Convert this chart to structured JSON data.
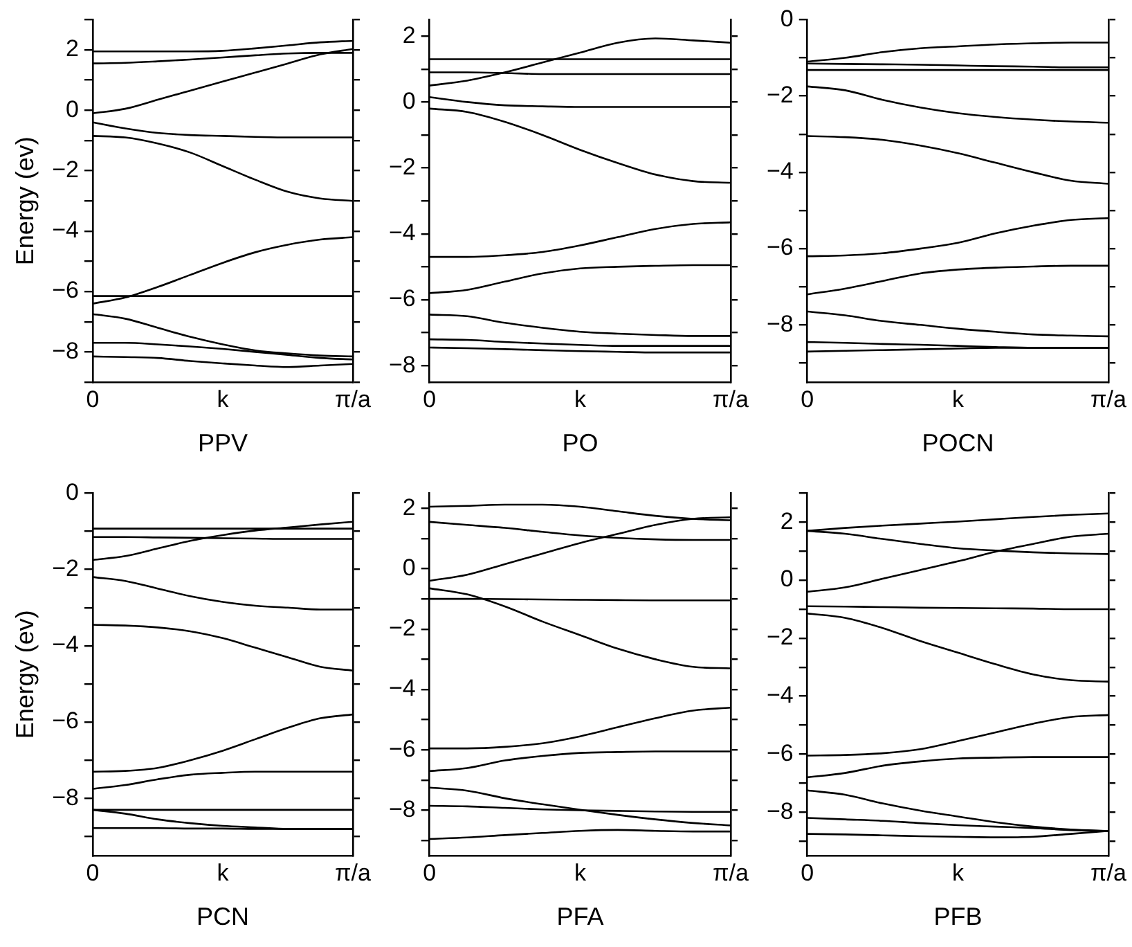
{
  "chart_data": [
    {
      "type": "line",
      "xlabel": "PPV",
      "ylabel": "Energy (ev)",
      "marker": "none",
      "line_style": "solid",
      "categories": [
        "0",
        null,
        null,
        null,
        "k",
        null,
        null,
        null,
        "π/a"
      ],
      "ylim": [
        -9,
        3
      ],
      "yticks": [
        {
          "value": -9,
          "label": null
        },
        -8,
        {
          "value": -7,
          "label": null
        },
        -6,
        {
          "value": -5,
          "label": null
        },
        -4,
        {
          "value": -3,
          "label": null
        },
        -2,
        {
          "value": -1,
          "label": null
        },
        0,
        {
          "value": 1,
          "label": null
        },
        2,
        {
          "value": 3,
          "label": null
        }
      ],
      "series": [
        {
          "color": "#000000",
          "values": [
            1.95,
            1.95,
            1.95,
            1.95,
            1.97,
            2.05,
            2.15,
            2.25,
            2.3
          ]
        },
        {
          "color": "#000000",
          "values": [
            1.55,
            1.57,
            1.62,
            1.68,
            1.75,
            1.82,
            1.88,
            1.9,
            1.9
          ]
        },
        {
          "color": "#000000",
          "values": [
            -0.1,
            0.05,
            0.35,
            0.65,
            0.95,
            1.25,
            1.55,
            1.85,
            2.03
          ]
        },
        {
          "color": "#000000",
          "values": [
            -0.4,
            -0.6,
            -0.75,
            -0.82,
            -0.85,
            -0.88,
            -0.9,
            -0.9,
            -0.9
          ]
        },
        {
          "color": "#000000",
          "values": [
            -0.85,
            -0.9,
            -1.1,
            -1.4,
            -1.85,
            -2.3,
            -2.7,
            -2.92,
            -3.0
          ]
        },
        {
          "color": "#000000",
          "values": [
            -6.4,
            -6.2,
            -5.85,
            -5.45,
            -5.05,
            -4.7,
            -4.45,
            -4.28,
            -4.2
          ]
        },
        {
          "color": "#000000",
          "values": [
            -6.15,
            -6.15,
            -6.15,
            -6.15,
            -6.15,
            -6.15,
            -6.15,
            -6.15,
            -6.15
          ]
        },
        {
          "color": "#000000",
          "values": [
            -6.75,
            -6.9,
            -7.2,
            -7.5,
            -7.75,
            -7.95,
            -8.05,
            -8.12,
            -8.15
          ]
        },
        {
          "color": "#000000",
          "values": [
            -7.7,
            -7.7,
            -7.75,
            -7.82,
            -7.9,
            -8.0,
            -8.1,
            -8.2,
            -8.25
          ]
        },
        {
          "color": "#000000",
          "values": [
            -8.15,
            -8.17,
            -8.2,
            -8.3,
            -8.38,
            -8.45,
            -8.5,
            -8.45,
            -8.4
          ]
        }
      ]
    },
    {
      "type": "line",
      "xlabel": "PO",
      "marker": "none",
      "line_style": "solid",
      "categories": [
        "0",
        null,
        null,
        null,
        "k",
        null,
        null,
        null,
        "π/a"
      ],
      "ylim": [
        -8.5,
        2.5
      ],
      "yticks": [
        -8,
        {
          "value": -7,
          "label": null
        },
        -6,
        {
          "value": -5,
          "label": null
        },
        -4,
        {
          "value": -3,
          "label": null
        },
        -2,
        {
          "value": -1,
          "label": null
        },
        0,
        {
          "value": 1,
          "label": null
        },
        2
      ],
      "series": [
        {
          "color": "#000000",
          "values": [
            0.5,
            0.65,
            0.9,
            1.2,
            1.5,
            1.8,
            1.93,
            1.87,
            1.8
          ]
        },
        {
          "color": "#000000",
          "values": [
            1.3,
            1.3,
            1.3,
            1.3,
            1.3,
            1.3,
            1.3,
            1.3,
            1.3
          ]
        },
        {
          "color": "#000000",
          "values": [
            0.9,
            0.9,
            0.88,
            0.85,
            0.85,
            0.85,
            0.85,
            0.85,
            0.85
          ]
        },
        {
          "color": "#000000",
          "values": [
            0.15,
            0.0,
            -0.1,
            -0.13,
            -0.15,
            -0.15,
            -0.15,
            -0.15,
            -0.15
          ]
        },
        {
          "color": "#000000",
          "values": [
            -0.2,
            -0.3,
            -0.6,
            -1.0,
            -1.45,
            -1.85,
            -2.2,
            -2.4,
            -2.45
          ]
        },
        {
          "color": "#000000",
          "values": [
            -4.7,
            -4.7,
            -4.65,
            -4.55,
            -4.35,
            -4.1,
            -3.85,
            -3.7,
            -3.65
          ]
        },
        {
          "color": "#000000",
          "values": [
            -5.8,
            -5.7,
            -5.45,
            -5.2,
            -5.05,
            -5.0,
            -4.97,
            -4.95,
            -4.95
          ]
        },
        {
          "color": "#000000",
          "values": [
            -6.45,
            -6.5,
            -6.7,
            -6.85,
            -6.97,
            -7.03,
            -7.07,
            -7.1,
            -7.1
          ]
        },
        {
          "color": "#000000",
          "values": [
            -7.2,
            -7.22,
            -7.28,
            -7.33,
            -7.37,
            -7.4,
            -7.4,
            -7.4,
            -7.4
          ]
        },
        {
          "color": "#000000",
          "values": [
            -7.45,
            -7.47,
            -7.5,
            -7.53,
            -7.56,
            -7.58,
            -7.6,
            -7.6,
            -7.6
          ]
        }
      ]
    },
    {
      "type": "line",
      "xlabel": "POCN",
      "marker": "none",
      "line_style": "solid",
      "categories": [
        "0",
        null,
        null,
        null,
        "k",
        null,
        null,
        null,
        "π/a"
      ],
      "ylim": [
        -9.5,
        0
      ],
      "yticks": [
        {
          "value": -9,
          "label": null
        },
        -8,
        {
          "value": -7,
          "label": null
        },
        -6,
        {
          "value": -5,
          "label": null
        },
        -4,
        {
          "value": -3,
          "label": null
        },
        -2,
        {
          "value": -1,
          "label": null
        },
        0
      ],
      "series": [
        {
          "color": "#000000",
          "values": [
            -1.1,
            -1.0,
            -0.85,
            -0.75,
            -0.7,
            -0.65,
            -0.62,
            -0.6,
            -0.6
          ]
        },
        {
          "color": "#000000",
          "values": [
            -1.15,
            -1.16,
            -1.17,
            -1.18,
            -1.2,
            -1.22,
            -1.23,
            -1.25,
            -1.25
          ]
        },
        {
          "color": "#000000",
          "values": [
            -1.32,
            -1.32,
            -1.32,
            -1.32,
            -1.32,
            -1.32,
            -1.32,
            -1.32,
            -1.32
          ]
        },
        {
          "color": "#000000",
          "values": [
            -1.75,
            -1.85,
            -2.1,
            -2.3,
            -2.45,
            -2.55,
            -2.62,
            -2.67,
            -2.7
          ]
        },
        {
          "color": "#000000",
          "values": [
            -3.05,
            -3.08,
            -3.15,
            -3.3,
            -3.5,
            -3.75,
            -4.0,
            -4.22,
            -4.3
          ]
        },
        {
          "color": "#000000",
          "values": [
            -6.2,
            -6.18,
            -6.12,
            -6.0,
            -5.85,
            -5.6,
            -5.4,
            -5.25,
            -5.2
          ]
        },
        {
          "color": "#000000",
          "values": [
            -7.2,
            -7.05,
            -6.85,
            -6.65,
            -6.55,
            -6.5,
            -6.47,
            -6.45,
            -6.45
          ]
        },
        {
          "color": "#000000",
          "values": [
            -7.65,
            -7.75,
            -7.9,
            -8.0,
            -8.1,
            -8.18,
            -8.25,
            -8.28,
            -8.3
          ]
        },
        {
          "color": "#000000",
          "values": [
            -8.45,
            -8.47,
            -8.5,
            -8.52,
            -8.55,
            -8.58,
            -8.6,
            -8.6,
            -8.6
          ]
        },
        {
          "color": "#000000",
          "values": [
            -8.7,
            -8.68,
            -8.66,
            -8.64,
            -8.62,
            -8.6,
            -8.6,
            -8.6,
            -8.6
          ]
        }
      ]
    },
    {
      "type": "line",
      "xlabel": "PCN",
      "ylabel": "Energy (ev)",
      "marker": "none",
      "line_style": "solid",
      "categories": [
        "0",
        null,
        null,
        null,
        "k",
        null,
        null,
        null,
        "π/a"
      ],
      "ylim": [
        -9.5,
        0
      ],
      "yticks": [
        {
          "value": -9,
          "label": null
        },
        -8,
        {
          "value": -7,
          "label": null
        },
        -6,
        {
          "value": -5,
          "label": null
        },
        -4,
        {
          "value": -3,
          "label": null
        },
        -2,
        {
          "value": -1,
          "label": null
        },
        0
      ],
      "series": [
        {
          "color": "#000000",
          "values": [
            -0.93,
            -0.93,
            -0.93,
            -0.93,
            -0.93,
            -0.93,
            -0.93,
            -0.93,
            -0.93
          ]
        },
        {
          "color": "#000000",
          "values": [
            -1.15,
            -1.15,
            -1.16,
            -1.17,
            -1.18,
            -1.19,
            -1.2,
            -1.2,
            -1.2
          ]
        },
        {
          "color": "#000000",
          "values": [
            -1.75,
            -1.65,
            -1.45,
            -1.25,
            -1.1,
            -0.98,
            -0.9,
            -0.82,
            -0.75
          ]
        },
        {
          "color": "#000000",
          "values": [
            -2.2,
            -2.3,
            -2.5,
            -2.7,
            -2.85,
            -2.95,
            -3.0,
            -3.05,
            -3.05
          ]
        },
        {
          "color": "#000000",
          "values": [
            -3.45,
            -3.47,
            -3.52,
            -3.62,
            -3.8,
            -4.05,
            -4.3,
            -4.55,
            -4.65
          ]
        },
        {
          "color": "#000000",
          "values": [
            -7.3,
            -7.28,
            -7.2,
            -7.0,
            -6.75,
            -6.45,
            -6.15,
            -5.9,
            -5.8
          ]
        },
        {
          "color": "#000000",
          "values": [
            -7.75,
            -7.65,
            -7.5,
            -7.38,
            -7.33,
            -7.3,
            -7.3,
            -7.3,
            -7.3
          ]
        },
        {
          "color": "#000000",
          "values": [
            -8.3,
            -8.3,
            -8.3,
            -8.3,
            -8.3,
            -8.3,
            -8.3,
            -8.3,
            -8.3
          ]
        },
        {
          "color": "#000000",
          "values": [
            -8.3,
            -8.4,
            -8.55,
            -8.65,
            -8.72,
            -8.76,
            -8.8,
            -8.8,
            -8.8
          ]
        },
        {
          "color": "#000000",
          "values": [
            -8.78,
            -8.78,
            -8.78,
            -8.79,
            -8.79,
            -8.8,
            -8.8,
            -8.8,
            -8.8
          ]
        }
      ]
    },
    {
      "type": "line",
      "xlabel": "PFA",
      "marker": "none",
      "line_style": "solid",
      "categories": [
        "0",
        null,
        null,
        null,
        "k",
        null,
        null,
        null,
        "π/a"
      ],
      "ylim": [
        -9.5,
        2.5
      ],
      "yticks": [
        {
          "value": -9,
          "label": null
        },
        -8,
        {
          "value": -7,
          "label": null
        },
        -6,
        {
          "value": -5,
          "label": null
        },
        -4,
        {
          "value": -3,
          "label": null
        },
        -2,
        {
          "value": -1,
          "label": null
        },
        0,
        {
          "value": 1,
          "label": null
        },
        2
      ],
      "series": [
        {
          "color": "#000000",
          "values": [
            2.05,
            2.08,
            2.12,
            2.12,
            2.05,
            1.9,
            1.75,
            1.65,
            1.6
          ]
        },
        {
          "color": "#000000",
          "values": [
            1.55,
            1.45,
            1.35,
            1.22,
            1.1,
            1.02,
            0.97,
            0.95,
            0.95
          ]
        },
        {
          "color": "#000000",
          "values": [
            -0.4,
            -0.2,
            0.15,
            0.5,
            0.85,
            1.15,
            1.45,
            1.65,
            1.7
          ]
        },
        {
          "color": "#000000",
          "values": [
            -0.65,
            -0.85,
            -1.25,
            -1.75,
            -2.2,
            -2.65,
            -3.0,
            -3.25,
            -3.3
          ]
        },
        {
          "color": "#000000",
          "values": [
            -1.0,
            -1.0,
            -1.01,
            -1.02,
            -1.03,
            -1.04,
            -1.05,
            -1.05,
            -1.05
          ]
        },
        {
          "color": "#000000",
          "values": [
            -5.95,
            -5.95,
            -5.9,
            -5.78,
            -5.55,
            -5.25,
            -4.95,
            -4.7,
            -4.6
          ]
        },
        {
          "color": "#000000",
          "values": [
            -6.7,
            -6.6,
            -6.35,
            -6.2,
            -6.1,
            -6.07,
            -6.05,
            -6.05,
            -6.05
          ]
        },
        {
          "color": "#000000",
          "values": [
            -7.25,
            -7.35,
            -7.6,
            -7.8,
            -7.98,
            -8.15,
            -8.3,
            -8.42,
            -8.5
          ]
        },
        {
          "color": "#000000",
          "values": [
            -7.85,
            -7.87,
            -7.92,
            -7.97,
            -8.0,
            -8.02,
            -8.04,
            -8.05,
            -8.05
          ]
        },
        {
          "color": "#000000",
          "values": [
            -8.95,
            -8.9,
            -8.82,
            -8.75,
            -8.68,
            -8.65,
            -8.68,
            -8.7,
            -8.7
          ]
        }
      ]
    },
    {
      "type": "line",
      "xlabel": "PFB",
      "marker": "none",
      "line_style": "solid",
      "categories": [
        "0",
        null,
        null,
        null,
        "k",
        null,
        null,
        null,
        "π/a"
      ],
      "ylim": [
        -9.5,
        3
      ],
      "yticks": [
        {
          "value": -9,
          "label": null
        },
        -8,
        {
          "value": -7,
          "label": null
        },
        -6,
        {
          "value": -5,
          "label": null
        },
        -4,
        {
          "value": -3,
          "label": null
        },
        -2,
        {
          "value": -1,
          "label": null
        },
        0,
        {
          "value": 1,
          "label": null
        },
        2,
        {
          "value": 3,
          "label": null
        }
      ],
      "series": [
        {
          "color": "#000000",
          "values": [
            1.7,
            1.8,
            1.88,
            1.95,
            2.02,
            2.1,
            2.18,
            2.25,
            2.3
          ]
        },
        {
          "color": "#000000",
          "values": [
            1.7,
            1.6,
            1.42,
            1.25,
            1.1,
            1.02,
            0.96,
            0.92,
            0.9
          ]
        },
        {
          "color": "#000000",
          "values": [
            -0.4,
            -0.25,
            0.05,
            0.35,
            0.65,
            0.98,
            1.25,
            1.5,
            1.6
          ]
        },
        {
          "color": "#000000",
          "values": [
            -0.9,
            -0.91,
            -0.93,
            -0.95,
            -0.96,
            -0.97,
            -0.98,
            -1.0,
            -1.0
          ]
        },
        {
          "color": "#000000",
          "values": [
            -1.15,
            -1.3,
            -1.65,
            -2.1,
            -2.5,
            -2.9,
            -3.25,
            -3.45,
            -3.5
          ]
        },
        {
          "color": "#000000",
          "values": [
            -6.05,
            -6.03,
            -5.97,
            -5.83,
            -5.55,
            -5.25,
            -4.95,
            -4.72,
            -4.65
          ]
        },
        {
          "color": "#000000",
          "values": [
            -6.8,
            -6.65,
            -6.4,
            -6.25,
            -6.15,
            -6.12,
            -6.1,
            -6.1,
            -6.1
          ]
        },
        {
          "color": "#000000",
          "values": [
            -7.25,
            -7.4,
            -7.7,
            -7.95,
            -8.15,
            -8.35,
            -8.5,
            -8.6,
            -8.65
          ]
        },
        {
          "color": "#000000",
          "values": [
            -8.2,
            -8.25,
            -8.3,
            -8.38,
            -8.45,
            -8.5,
            -8.55,
            -8.62,
            -8.65
          ]
        },
        {
          "color": "#000000",
          "values": [
            -8.75,
            -8.77,
            -8.8,
            -8.83,
            -8.85,
            -8.87,
            -8.85,
            -8.75,
            -8.65
          ]
        }
      ]
    }
  ]
}
